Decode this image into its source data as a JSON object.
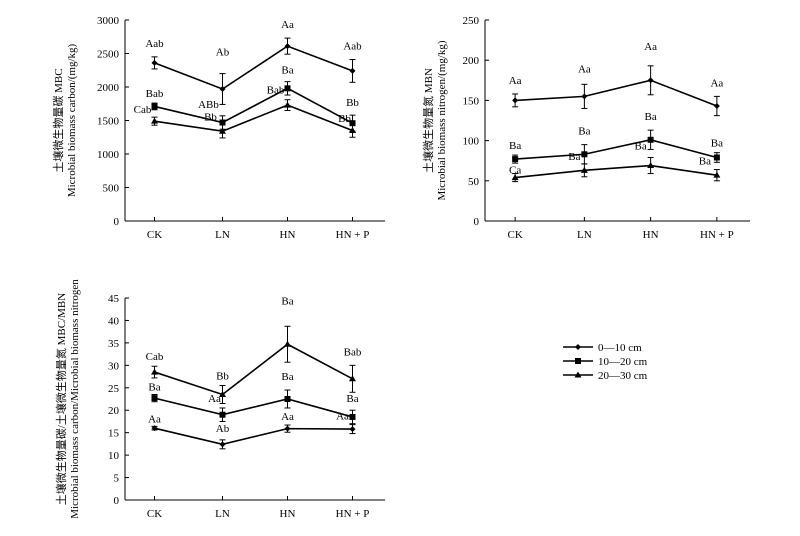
{
  "chart_data": [
    {
      "type": "line",
      "ylabel": "土壤微生物量碳 MBC\nMicrobial biomass carbon/(mg/kg)",
      "categories": [
        "CK",
        "LN",
        "HN",
        "HN + P"
      ],
      "ylim": [
        0,
        3000
      ],
      "yticks": [
        "0",
        "500",
        "1000",
        "1500",
        "2000",
        "2500",
        "3000"
      ],
      "series": [
        {
          "name": "0—10 cm",
          "marker": "diamond",
          "values": [
            2360,
            1970,
            2610,
            2240
          ],
          "errors": [
            90,
            230,
            120,
            170
          ],
          "labels": [
            "Aab",
            "Ab",
            "Aa",
            "Aab"
          ]
        },
        {
          "name": "10—20 cm",
          "marker": "square",
          "values": [
            1710,
            1470,
            1980,
            1460
          ],
          "errors": [
            50,
            100,
            100,
            120
          ],
          "labels": [
            "Bab",
            "ABb",
            "Ba",
            "Bb"
          ]
        },
        {
          "name": "20—30 cm",
          "marker": "triangle",
          "values": [
            1490,
            1340,
            1730,
            1350
          ],
          "errors": [
            60,
            100,
            80,
            100
          ],
          "labels": [
            "Cab",
            "Bb",
            "Bab",
            "Bb"
          ]
        }
      ]
    },
    {
      "type": "line",
      "ylabel": "土壤微生物量氮 MBN\nMicrobial biomass nitrogen/(mg/kg)",
      "categories": [
        "CK",
        "LN",
        "HN",
        "HN + P"
      ],
      "ylim": [
        0,
        250
      ],
      "yticks": [
        "0",
        "50",
        "100",
        "150",
        "200",
        "250"
      ],
      "series": [
        {
          "name": "0—10 cm",
          "marker": "diamond",
          "values": [
            150,
            155,
            175,
            143
          ],
          "errors": [
            8,
            15,
            18,
            12
          ],
          "labels": [
            "Aa",
            "Aa",
            "Aa",
            "Aa"
          ]
        },
        {
          "name": "10—20 cm",
          "marker": "square",
          "values": [
            77,
            83,
            101,
            79
          ],
          "errors": [
            5,
            12,
            12,
            6
          ],
          "labels": [
            "Ba",
            "Ba",
            "Ba",
            "Ba"
          ]
        },
        {
          "name": "20—30 cm",
          "marker": "triangle",
          "values": [
            54,
            63,
            69,
            57
          ],
          "errors": [
            5,
            8,
            10,
            7
          ],
          "labels": [
            "Ca",
            "Ba",
            "Ba",
            "Ba"
          ]
        }
      ]
    },
    {
      "type": "line",
      "ylabel": "土壤微生物量碳/土壤微生物量氮 MBC/MBN\nMicrobial biomass carbon/Microbial biomass nitrogen",
      "categories": [
        "CK",
        "LN",
        "HN",
        "HN + P"
      ],
      "ylim": [
        0,
        45
      ],
      "yticks": [
        "0",
        "5",
        "10",
        "15",
        "20",
        "25",
        "30",
        "35",
        "40",
        "45"
      ],
      "series": [
        {
          "name": "0—10 cm",
          "marker": "diamond",
          "values": [
            16.0,
            12.4,
            15.9,
            15.8
          ],
          "errors": [
            0.4,
            1.0,
            0.8,
            1.0
          ],
          "labels": [
            "Aa",
            "Ab",
            "Aa",
            "Aa"
          ]
        },
        {
          "name": "10—20 cm",
          "marker": "square",
          "values": [
            22.7,
            19.0,
            22.5,
            18.5
          ],
          "errors": [
            0.8,
            1.5,
            2.0,
            1.5
          ],
          "labels": [
            "Ba",
            "Aa",
            "Ba",
            "Ba"
          ]
        },
        {
          "name": "20—30 cm",
          "marker": "triangle",
          "values": [
            28.5,
            23.5,
            34.7,
            27.0
          ],
          "errors": [
            1.3,
            2.0,
            4.0,
            3.0
          ],
          "labels": [
            "Cab",
            "Bb",
            "Ba",
            "Bab"
          ]
        }
      ]
    }
  ],
  "legend": {
    "items": [
      {
        "label": "0—10 cm",
        "marker": "diamond"
      },
      {
        "label": "10—20 cm",
        "marker": "square"
      },
      {
        "label": "20—30 cm",
        "marker": "triangle"
      }
    ]
  }
}
